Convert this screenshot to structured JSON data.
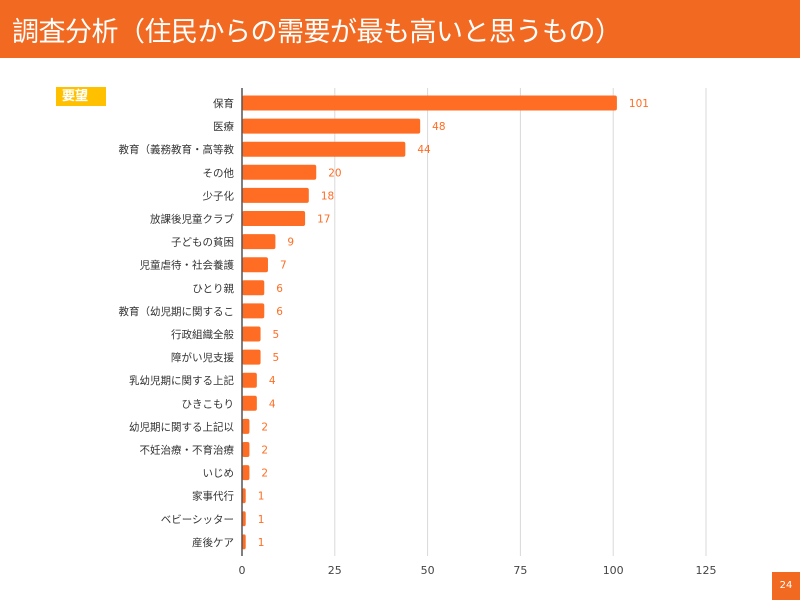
{
  "header": {
    "title": "調査分析（住民からの需要が最も高いと思うもの）"
  },
  "tag": "要望",
  "page_number": "24",
  "colors": {
    "accent": "#f26a21",
    "tag": "#ffc000",
    "bar": "#ff6d24",
    "label": "#ff6d24"
  },
  "chart_data": {
    "type": "bar",
    "orientation": "horizontal",
    "categories": [
      "保育",
      "医療",
      "教育（義務教育・高等教",
      "その他",
      "少子化",
      "放課後児童クラブ",
      "子どもの貧困",
      "児童虐待・社会養護",
      "ひとり親",
      "教育（幼児期に関するこ",
      "行政組織全般",
      "障がい児支援",
      "乳幼児期に関する上記",
      "ひきこもり",
      "幼児期に関する上記以",
      "不妊治療・不育治療",
      "いじめ",
      "家事代行",
      "ベビーシッター",
      "産後ケア"
    ],
    "values": [
      101,
      48,
      44,
      20,
      18,
      17,
      9,
      7,
      6,
      6,
      5,
      5,
      4,
      4,
      2,
      2,
      2,
      1,
      1,
      1
    ],
    "xlim": [
      0,
      125
    ],
    "xticks": [
      "0",
      "25",
      "50",
      "75",
      "100",
      "125"
    ],
    "grid": true
  }
}
